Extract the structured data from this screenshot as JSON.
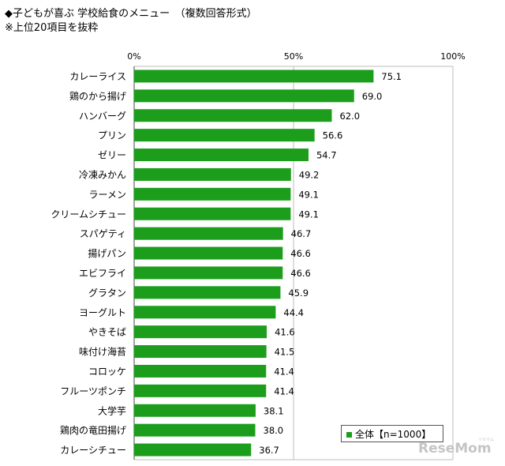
{
  "title_line1": "◆子どもが喜ぶ 学校給食のメニュー　（複数回答形式）",
  "title_line2": "※上位20項目を抜粋",
  "legend": {
    "label": "全体【n=1000】",
    "color": "#1c9e1c"
  },
  "logo": {
    "text": "ReseMom",
    "sub": "リセマム"
  },
  "chart_data": {
    "type": "bar",
    "orientation": "horizontal",
    "title": "",
    "xlabel": "",
    "ylabel": "",
    "xlim": [
      0,
      100
    ],
    "ticks": [
      {
        "value": 0,
        "label": "0%"
      },
      {
        "value": 50,
        "label": "50%"
      },
      {
        "value": 100,
        "label": "100%"
      }
    ],
    "grid": true,
    "legend_position": "bottom-right",
    "categories": [
      "カレーライス",
      "鶏のから揚げ",
      "ハンバーグ",
      "プリン",
      "ゼリー",
      "冷凍みかん",
      "ラーメン",
      "クリームシチュー",
      "スパゲティ",
      "揚げパン",
      "エビフライ",
      "グラタン",
      "ヨーグルト",
      "やきそば",
      "味付け海苔",
      "コロッケ",
      "フルーツポンチ",
      "大学芋",
      "鶏肉の竜田揚げ",
      "カレーシチュー"
    ],
    "series": [
      {
        "name": "全体【n=1000】",
        "color": "#1c9e1c",
        "values": [
          75.1,
          69.0,
          62.0,
          56.6,
          54.7,
          49.2,
          49.1,
          49.1,
          46.7,
          46.6,
          46.6,
          45.9,
          44.4,
          41.6,
          41.5,
          41.4,
          41.4,
          38.1,
          38.0,
          36.7
        ]
      }
    ]
  }
}
